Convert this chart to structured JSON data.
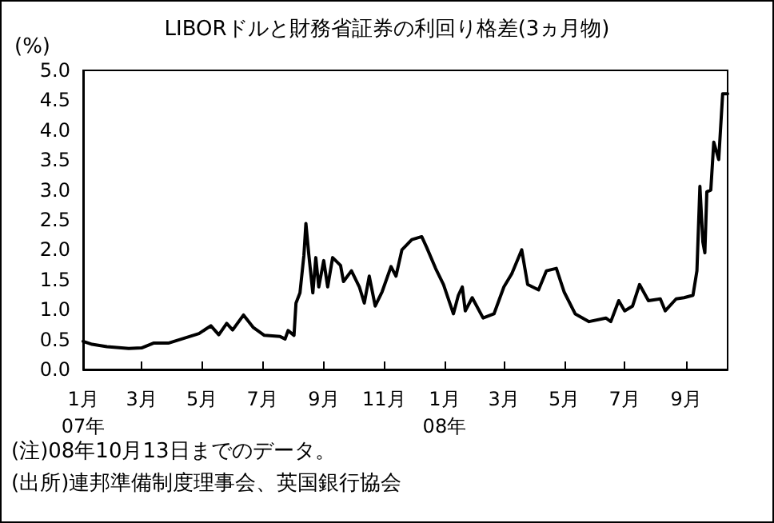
{
  "chart_data": {
    "type": "line",
    "title": "LIBORドルと財務省証券の利回り格差(3ヵ月物)",
    "ylabel": "(%)",
    "x": [
      "2007-01-01",
      "2007-01-10",
      "2007-01-25",
      "2007-02-16",
      "2007-03-01",
      "2007-03-13",
      "2007-03-28",
      "2007-04-28",
      "2007-05-10",
      "2007-05-18",
      "2007-05-26",
      "2007-06-01",
      "2007-06-12",
      "2007-06-22",
      "2007-07-03",
      "2007-07-19",
      "2007-07-24",
      "2007-07-27",
      "2007-08-02",
      "2007-08-04",
      "2007-08-08",
      "2007-08-12",
      "2007-08-14",
      "2007-08-17",
      "2007-08-21",
      "2007-08-24",
      "2007-08-27",
      "2007-09-01",
      "2007-09-05",
      "2007-09-10",
      "2007-09-18",
      "2007-09-21",
      "2007-09-29",
      "2007-10-07",
      "2007-10-12",
      "2007-10-17",
      "2007-10-23",
      "2007-10-30",
      "2007-11-08",
      "2007-11-13",
      "2007-11-19",
      "2007-11-29",
      "2007-12-09",
      "2007-12-14",
      "2007-12-23",
      "2007-12-31",
      "2008-01-10",
      "2008-01-15",
      "2008-01-19",
      "2008-01-22",
      "2008-01-29",
      "2008-02-09",
      "2008-02-20",
      "2008-03-01",
      "2008-03-09",
      "2008-03-19",
      "2008-03-25",
      "2008-04-05",
      "2008-04-13",
      "2008-04-23",
      "2008-05-01",
      "2008-05-12",
      "2008-05-26",
      "2008-06-12",
      "2008-06-17",
      "2008-06-25",
      "2008-07-01",
      "2008-07-09",
      "2008-07-16",
      "2008-07-25",
      "2008-08-06",
      "2008-08-11",
      "2008-08-22",
      "2008-08-30",
      "2008-09-08",
      "2008-09-12",
      "2008-09-15",
      "2008-09-18",
      "2008-09-20",
      "2008-09-22",
      "2008-09-26",
      "2008-09-29",
      "2008-10-04",
      "2008-10-08",
      "2008-10-13"
    ],
    "series": [
      {
        "color": "#000000",
        "values": [
          0.47,
          0.42,
          0.38,
          0.35,
          0.36,
          0.44,
          0.44,
          0.6,
          0.73,
          0.58,
          0.77,
          0.66,
          0.91,
          0.7,
          0.57,
          0.55,
          0.51,
          0.65,
          0.57,
          1.11,
          1.28,
          1.91,
          2.44,
          1.91,
          1.28,
          1.87,
          1.38,
          1.82,
          1.38,
          1.87,
          1.74,
          1.47,
          1.65,
          1.38,
          1.11,
          1.56,
          1.06,
          1.3,
          1.72,
          1.56,
          2.0,
          2.17,
          2.22,
          2.04,
          1.69,
          1.42,
          0.93,
          1.24,
          1.38,
          0.98,
          1.2,
          0.86,
          0.93,
          1.38,
          1.6,
          2.0,
          1.42,
          1.33,
          1.65,
          1.69,
          1.29,
          0.93,
          0.8,
          0.86,
          0.8,
          1.15,
          0.98,
          1.06,
          1.42,
          1.15,
          1.18,
          0.98,
          1.18,
          1.2,
          1.24,
          1.65,
          3.06,
          2.13,
          1.95,
          2.97,
          3.0,
          3.8,
          3.51,
          4.61,
          4.61
        ]
      }
    ],
    "xlim": [
      "2007-01-01",
      "2008-10-13"
    ],
    "xticks": [
      {
        "value": "2007-01-01",
        "label": "1月\n07年"
      },
      {
        "value": "2007-03-01",
        "label": "3月"
      },
      {
        "value": "2007-05-01",
        "label": "5月"
      },
      {
        "value": "2007-07-01",
        "label": "7月"
      },
      {
        "value": "2007-09-01",
        "label": "9月"
      },
      {
        "value": "2007-11-01",
        "label": "11月"
      },
      {
        "value": "2008-01-01",
        "label": "1月\n08年"
      },
      {
        "value": "2008-03-01",
        "label": "3月"
      },
      {
        "value": "2008-05-01",
        "label": "5月"
      },
      {
        "value": "2008-07-01",
        "label": "7月"
      },
      {
        "value": "2008-09-01",
        "label": "9月"
      }
    ],
    "ylim": [
      0,
      5
    ],
    "yticks": [
      {
        "value": 0,
        "label": "0.0"
      },
      {
        "value": 0.5,
        "label": "0.5"
      },
      {
        "value": 1,
        "label": "1.0"
      },
      {
        "value": 1.5,
        "label": "1.5"
      },
      {
        "value": 2,
        "label": "2.0"
      },
      {
        "value": 2.5,
        "label": "2.5"
      },
      {
        "value": 3,
        "label": "3.0"
      },
      {
        "value": 3.5,
        "label": "3.5"
      },
      {
        "value": 4,
        "label": "4.0"
      },
      {
        "value": 4.5,
        "label": "4.5"
      },
      {
        "value": 5,
        "label": "5.0"
      }
    ],
    "grid": false,
    "marker": "none",
    "line_style": "solid",
    "annotations": [
      "(注)08年10月13日までのデータ。",
      "(出所)連邦準備制度理事会、英国銀行協会"
    ]
  }
}
